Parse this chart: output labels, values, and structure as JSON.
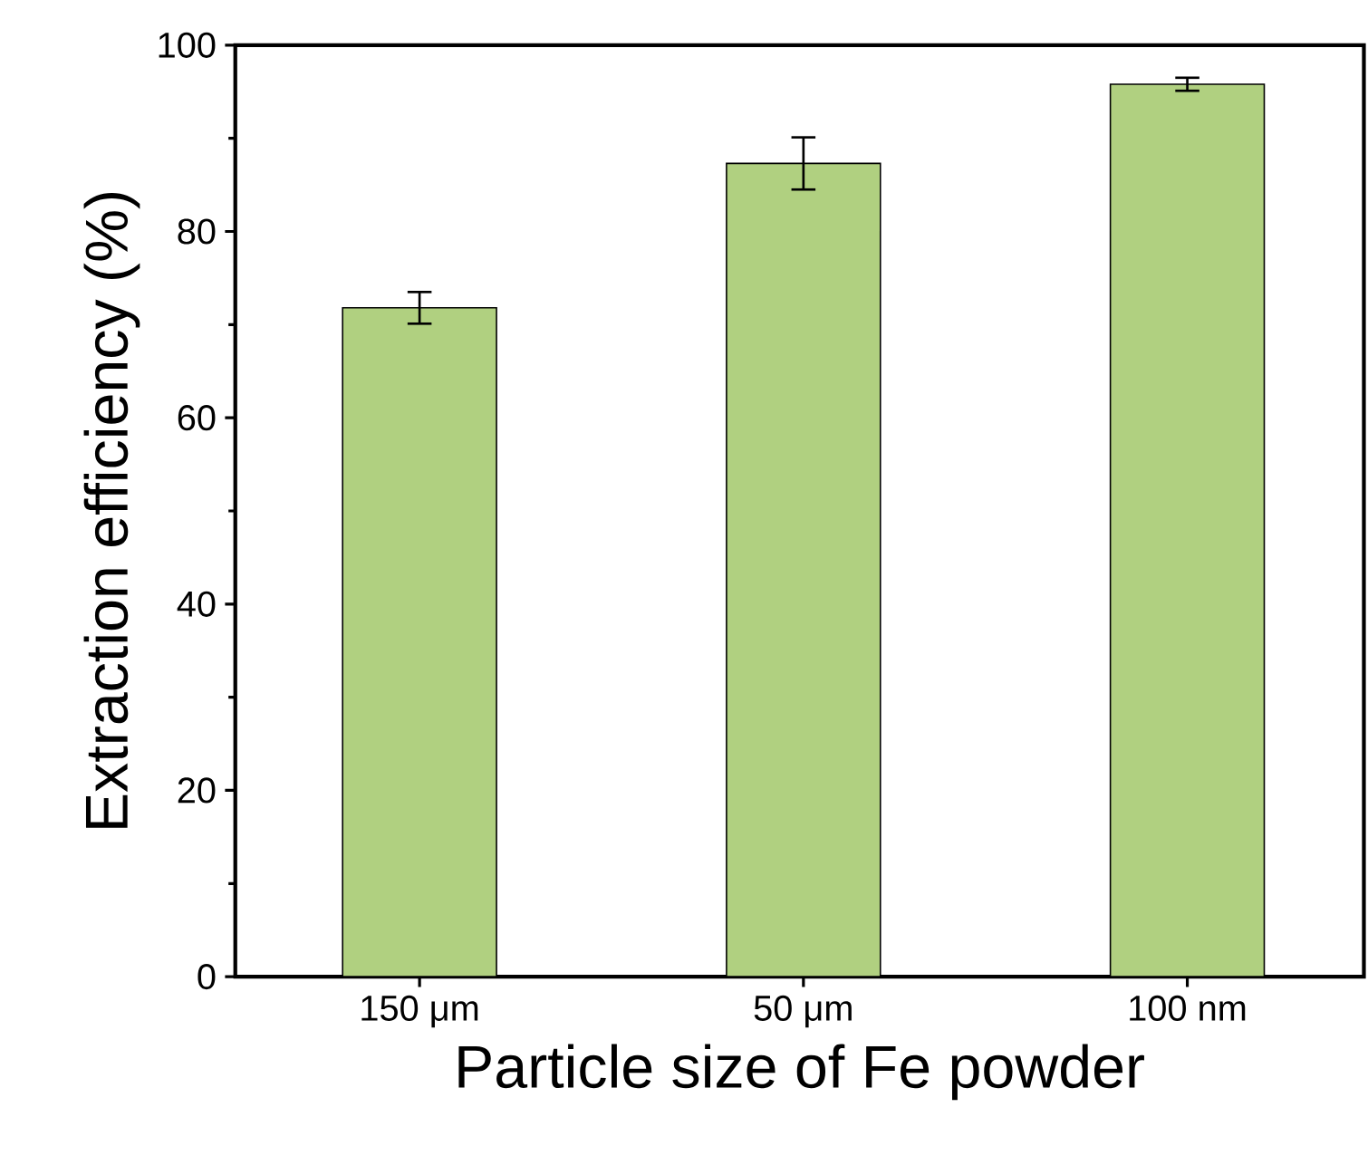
{
  "chart_data": {
    "type": "bar",
    "xlabel": "Particle size of Fe powder",
    "ylabel": "Extraction efficiency (%)",
    "categories": [
      "150 μm",
      "50 μm",
      "100 nm"
    ],
    "values": [
      71.8,
      87.3,
      95.8
    ],
    "errors": [
      1.7,
      2.8,
      0.7
    ],
    "color": "#b0d080",
    "ylim": [
      0,
      100
    ],
    "yticks": [
      0,
      20,
      40,
      60,
      80,
      100
    ],
    "grid": false
  }
}
